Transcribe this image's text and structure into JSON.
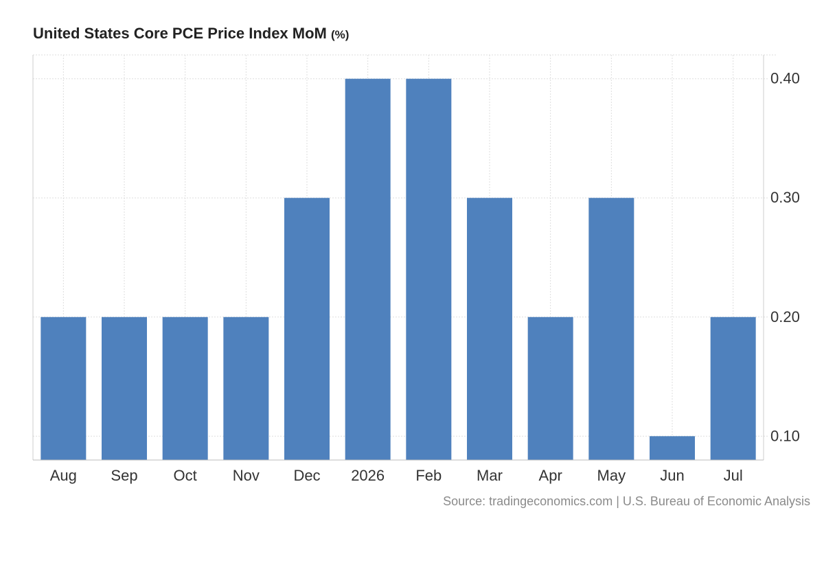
{
  "chart_data": {
    "type": "bar",
    "title": "United States Core PCE Price Index MoM",
    "unit": "(%)",
    "categories": [
      "Aug",
      "Sep",
      "Oct",
      "Nov",
      "Dec",
      "2026",
      "Feb",
      "Mar",
      "Apr",
      "May",
      "Jun",
      "Jul"
    ],
    "values": [
      0.2,
      0.2,
      0.2,
      0.2,
      0.3,
      0.4,
      0.4,
      0.3,
      0.2,
      0.3,
      0.1,
      0.2
    ],
    "y_ticks": [
      0.1,
      0.2,
      0.3,
      0.4
    ],
    "y_tick_labels": [
      "0.10",
      "0.20",
      "0.30",
      "0.40"
    ],
    "ylim": [
      0.08,
      0.42
    ],
    "y_axis_side": "right",
    "xlabel": "",
    "ylabel": "",
    "grid": true,
    "bar_color": "#4f81bd",
    "grid_color": "#dddddd"
  },
  "source_text": "Source: tradingeconomics.com | U.S. Bureau of Economic Analysis"
}
